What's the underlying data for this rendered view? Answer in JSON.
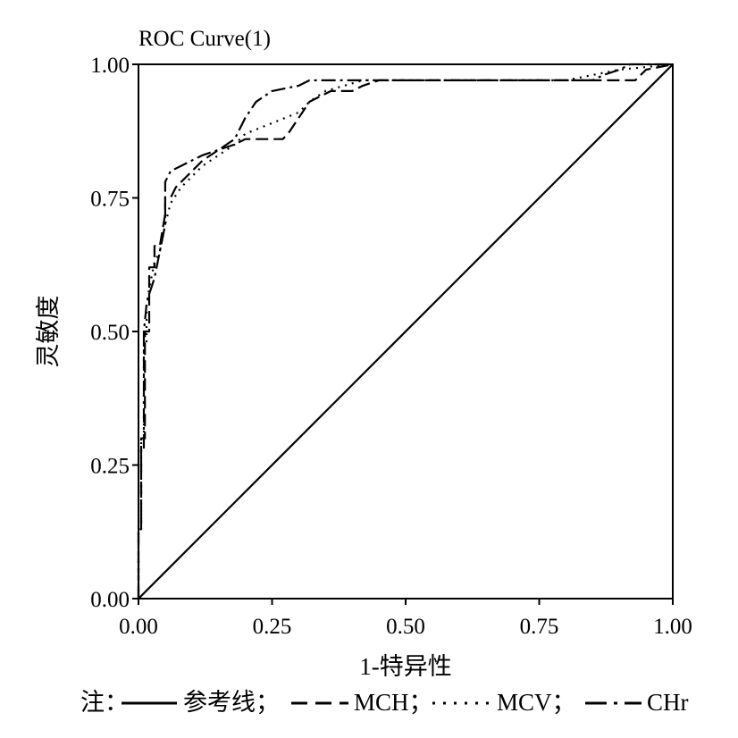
{
  "chart_data": {
    "type": "line",
    "title": "ROC Curve(1)",
    "xlabel": "1-特异性",
    "ylabel": "灵敏度",
    "xlim": [
      0,
      1
    ],
    "ylim": [
      0,
      1
    ],
    "xticks": [
      "0.00",
      "0.25",
      "0.50",
      "0.75",
      "1.00"
    ],
    "yticks": [
      "0.00",
      "0.25",
      "0.50",
      "0.75",
      "1.00"
    ],
    "grid": false,
    "legend": {
      "placement": "bottom",
      "prefix": "注：",
      "items": [
        {
          "label": "参考线；",
          "dash": "solid"
        },
        {
          "label": "MCH；",
          "dash": "long-dash"
        },
        {
          "label": "MCV；",
          "dash": "dot"
        },
        {
          "label": "CHr",
          "dash": "dash-dot"
        }
      ]
    },
    "series": [
      {
        "dash": "solid",
        "x": [
          0,
          1
        ],
        "y": [
          0,
          1
        ]
      },
      {
        "dash": "long-dash",
        "x": [
          0.0,
          0.0,
          0.005,
          0.005,
          0.012,
          0.012,
          0.02,
          0.02,
          0.03,
          0.03,
          0.04,
          0.05,
          0.05,
          0.06,
          0.07,
          0.08,
          0.1,
          0.12,
          0.15,
          0.18,
          0.2,
          0.25,
          0.27,
          0.28,
          0.3,
          0.32,
          0.34,
          0.36,
          0.4,
          0.42,
          0.45,
          0.6,
          0.8,
          0.93,
          0.95,
          1.0
        ],
        "y": [
          0.0,
          0.13,
          0.13,
          0.3,
          0.3,
          0.5,
          0.5,
          0.62,
          0.62,
          0.66,
          0.66,
          0.72,
          0.75,
          0.75,
          0.77,
          0.78,
          0.8,
          0.82,
          0.84,
          0.85,
          0.86,
          0.86,
          0.86,
          0.87,
          0.9,
          0.93,
          0.94,
          0.95,
          0.95,
          0.96,
          0.97,
          0.97,
          0.97,
          0.97,
          0.99,
          1.0
        ]
      },
      {
        "dash": "dot",
        "x": [
          0.0,
          0.0,
          0.005,
          0.005,
          0.01,
          0.01,
          0.015,
          0.015,
          0.02,
          0.03,
          0.04,
          0.05,
          0.06,
          0.08,
          0.1,
          0.12,
          0.15,
          0.18,
          0.2,
          0.25,
          0.3,
          0.32,
          0.35,
          0.42,
          0.6,
          0.8,
          0.9,
          1.0
        ],
        "y": [
          0.0,
          0.14,
          0.14,
          0.3,
          0.3,
          0.48,
          0.48,
          0.55,
          0.58,
          0.63,
          0.65,
          0.7,
          0.74,
          0.77,
          0.79,
          0.81,
          0.83,
          0.85,
          0.87,
          0.89,
          0.91,
          0.93,
          0.95,
          0.97,
          0.97,
          0.97,
          0.99,
          1.0
        ]
      },
      {
        "dash": "dash-dot",
        "x": [
          0.0,
          0.0,
          0.005,
          0.005,
          0.01,
          0.01,
          0.015,
          0.02,
          0.03,
          0.04,
          0.05,
          0.05,
          0.06,
          0.08,
          0.1,
          0.12,
          0.15,
          0.18,
          0.2,
          0.22,
          0.25,
          0.3,
          0.32,
          0.35,
          0.42,
          0.6,
          0.85,
          0.87,
          0.9,
          0.92,
          0.95,
          1.0
        ],
        "y": [
          0.0,
          0.13,
          0.13,
          0.28,
          0.28,
          0.5,
          0.55,
          0.57,
          0.6,
          0.65,
          0.7,
          0.78,
          0.8,
          0.81,
          0.82,
          0.83,
          0.84,
          0.86,
          0.9,
          0.93,
          0.95,
          0.96,
          0.97,
          0.97,
          0.97,
          0.97,
          0.97,
          0.98,
          0.99,
          1.0,
          1.0,
          1.0
        ]
      }
    ]
  }
}
